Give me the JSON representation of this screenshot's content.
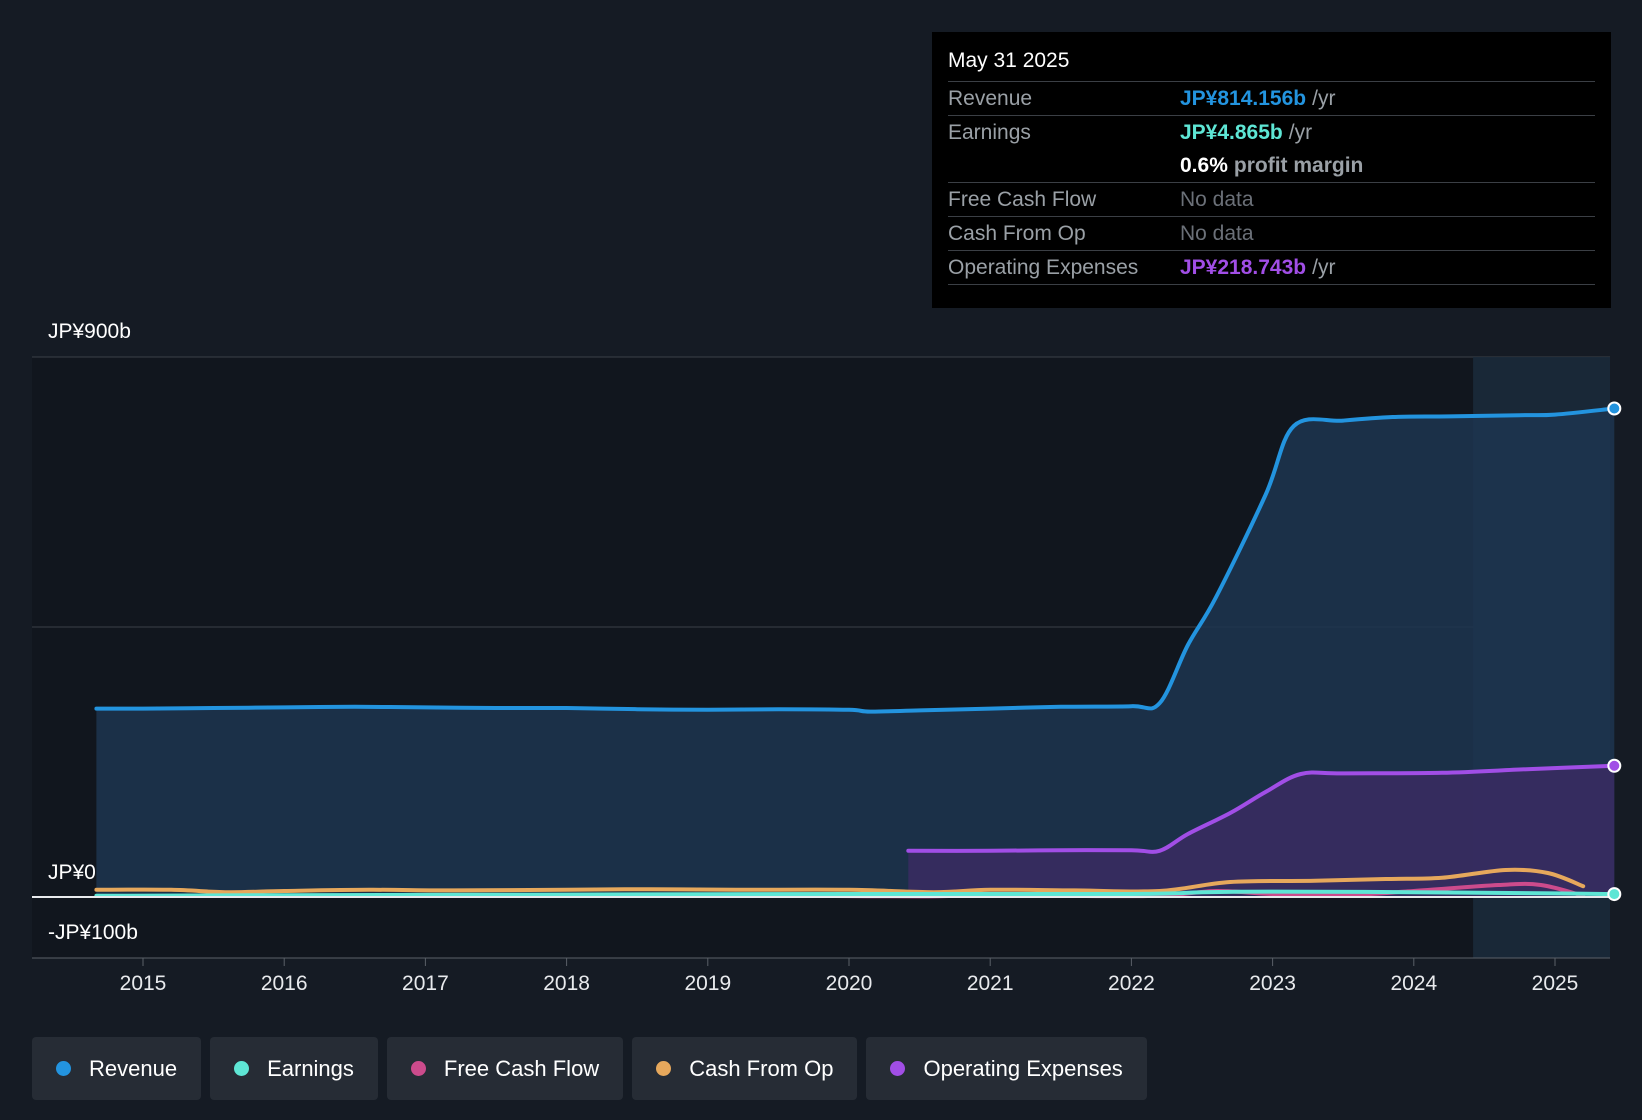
{
  "chart_data": {
    "type": "area",
    "x_axis": {
      "range": [
        2014.0,
        2025.45
      ],
      "ticks": [
        "2015",
        "2016",
        "2017",
        "2018",
        "2019",
        "2020",
        "2021",
        "2022",
        "2023",
        "2024",
        "2025"
      ]
    },
    "y_axis": {
      "range": [
        -100,
        900
      ],
      "unit": "JP¥ billions",
      "labels": {
        "top": "JP¥900b",
        "zero": "JP¥0",
        "bottom": "-JP¥100b"
      }
    },
    "grid": true,
    "highlight_start": 2024.42,
    "series": [
      {
        "name": "Revenue",
        "color": "#2394df",
        "fill": true,
        "points": [
          [
            2014.67,
            314
          ],
          [
            2015.0,
            314
          ],
          [
            2015.5,
            315
          ],
          [
            2016.0,
            316
          ],
          [
            2016.5,
            317
          ],
          [
            2017.0,
            316
          ],
          [
            2017.5,
            315
          ],
          [
            2018.0,
            315
          ],
          [
            2018.5,
            313
          ],
          [
            2019.0,
            312
          ],
          [
            2019.5,
            313
          ],
          [
            2020.0,
            312
          ],
          [
            2020.15,
            309
          ],
          [
            2020.5,
            311
          ],
          [
            2021.0,
            314
          ],
          [
            2021.5,
            317
          ],
          [
            2022.0,
            318
          ],
          [
            2022.2,
            323
          ],
          [
            2022.4,
            420
          ],
          [
            2022.6,
            500
          ],
          [
            2022.95,
            670
          ],
          [
            2023.15,
            785
          ],
          [
            2023.5,
            794
          ],
          [
            2023.85,
            800
          ],
          [
            2024.25,
            801
          ],
          [
            2024.75,
            803
          ],
          [
            2025.0,
            804
          ],
          [
            2025.42,
            814.156
          ]
        ]
      },
      {
        "name": "Earnings",
        "color": "#5ee6d5",
        "fill": false,
        "points": [
          [
            2014.67,
            2
          ],
          [
            2016.0,
            3
          ],
          [
            2018.0,
            4
          ],
          [
            2020.0,
            5
          ],
          [
            2022.0,
            5
          ],
          [
            2022.5,
            8
          ],
          [
            2023.0,
            9
          ],
          [
            2024.0,
            8
          ],
          [
            2025.0,
            6
          ],
          [
            2025.42,
            4.865
          ]
        ]
      },
      {
        "name": "Free Cash Flow",
        "color": "#cc4b8c",
        "fill": false,
        "points": [
          [
            2019.67,
            2
          ],
          [
            2020.5,
            1
          ],
          [
            2021.0,
            3
          ],
          [
            2021.5,
            2
          ],
          [
            2022.2,
            2
          ],
          [
            2022.6,
            10
          ],
          [
            2023.0,
            5
          ],
          [
            2023.5,
            3
          ],
          [
            2024.0,
            10
          ],
          [
            2024.6,
            20
          ],
          [
            2024.9,
            20
          ],
          [
            2025.2,
            2
          ]
        ]
      },
      {
        "name": "Cash From Op",
        "color": "#e6a85c",
        "fill": false,
        "points": [
          [
            2014.67,
            12
          ],
          [
            2015.2,
            12
          ],
          [
            2015.6,
            8
          ],
          [
            2016.0,
            10
          ],
          [
            2016.6,
            12
          ],
          [
            2017.2,
            11
          ],
          [
            2018.0,
            12
          ],
          [
            2018.6,
            13
          ],
          [
            2019.2,
            12
          ],
          [
            2020.0,
            12
          ],
          [
            2020.6,
            8
          ],
          [
            2021.0,
            12
          ],
          [
            2021.6,
            11
          ],
          [
            2022.2,
            10
          ],
          [
            2022.7,
            25
          ],
          [
            2023.3,
            27
          ],
          [
            2023.8,
            30
          ],
          [
            2024.2,
            32
          ],
          [
            2024.65,
            45
          ],
          [
            2024.95,
            40
          ],
          [
            2025.2,
            18
          ]
        ]
      },
      {
        "name": "Operating Expenses",
        "color": "#a14ee6",
        "fill": true,
        "points": [
          [
            2020.42,
            77
          ],
          [
            2021.0,
            77
          ],
          [
            2021.5,
            78
          ],
          [
            2022.0,
            78
          ],
          [
            2022.2,
            77
          ],
          [
            2022.4,
            105
          ],
          [
            2022.7,
            140
          ],
          [
            2022.95,
            175
          ],
          [
            2023.2,
            205
          ],
          [
            2023.5,
            206
          ],
          [
            2024.2,
            207
          ],
          [
            2024.8,
            213
          ],
          [
            2025.42,
            218.743
          ]
        ]
      }
    ]
  },
  "tooltip": {
    "date": "May 31 2025",
    "rows": {
      "revenue": {
        "label": "Revenue",
        "value": "JP¥814.156b",
        "unit": "/yr",
        "color": "#2394df"
      },
      "earnings": {
        "label": "Earnings",
        "value": "JP¥4.865b",
        "unit": "/yr",
        "color": "#5ee6d5"
      },
      "margin": {
        "value": "0.6%",
        "unit": "profit margin"
      },
      "fcf": {
        "label": "Free Cash Flow",
        "value": "No data"
      },
      "cfo": {
        "label": "Cash From Op",
        "value": "No data"
      },
      "opex": {
        "label": "Operating Expenses",
        "value": "JP¥218.743b",
        "unit": "/yr",
        "color": "#a14ee6"
      }
    }
  },
  "legend": [
    {
      "label": "Revenue",
      "color": "#2394df"
    },
    {
      "label": "Earnings",
      "color": "#5ee6d5"
    },
    {
      "label": "Free Cash Flow",
      "color": "#cc4b8c"
    },
    {
      "label": "Cash From Op",
      "color": "#e6a85c"
    },
    {
      "label": "Operating Expenses",
      "color": "#a14ee6"
    }
  ]
}
